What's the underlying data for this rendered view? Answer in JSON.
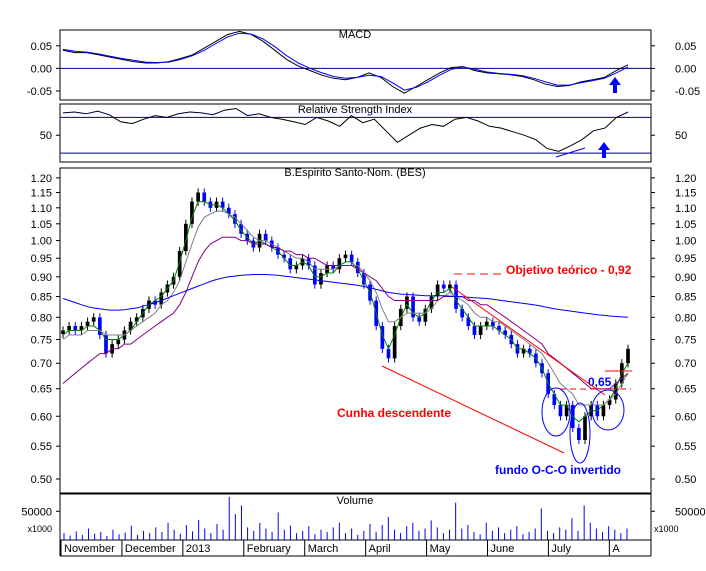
{
  "colors": {
    "background": "#ffffff",
    "frame": "#000000",
    "up_candle": "#000000",
    "down_candle": "#0000ff",
    "sma_short": "#008000",
    "sma_mid": "#800080",
    "sma_long": "#0000ff",
    "annotation_red": "#ff0000",
    "annotation_blue": "#0000ff",
    "marker_arrow": "#0000ff"
  },
  "chart_data": [
    {
      "type": "line",
      "title": "MACD",
      "y_ticks": [
        "0.05",
        "0.00",
        "-0.05"
      ],
      "ylim": [
        -0.07,
        0.085
      ],
      "grid": false,
      "reference_line": 0,
      "marker": "up-arrow",
      "series": [
        {
          "values": [
            0.04,
            0.035,
            0.035,
            0.03,
            0.025,
            0.02,
            0.015,
            0.012,
            0.012,
            0.015,
            0.022,
            0.03,
            0.045,
            0.06,
            0.075,
            0.082,
            0.075,
            0.06,
            0.04,
            0.02,
            0.005,
            -0.005,
            -0.015,
            -0.022,
            -0.025,
            -0.02,
            -0.01,
            -0.02,
            -0.04,
            -0.055,
            -0.04,
            -0.025,
            -0.01,
            0.002,
            0.004,
            -0.005,
            -0.01,
            -0.012,
            -0.014,
            -0.018,
            -0.025,
            -0.035,
            -0.04,
            -0.038,
            -0.03,
            -0.025,
            -0.02,
            -0.005,
            0.008
          ]
        },
        {
          "values": [
            0.042,
            0.038,
            0.036,
            0.032,
            0.027,
            0.022,
            0.018,
            0.014,
            0.013,
            0.014,
            0.02,
            0.028,
            0.04,
            0.055,
            0.07,
            0.078,
            0.076,
            0.065,
            0.048,
            0.028,
            0.012,
            0.0,
            -0.01,
            -0.018,
            -0.022,
            -0.02,
            -0.015,
            -0.018,
            -0.032,
            -0.048,
            -0.042,
            -0.03,
            -0.015,
            -0.002,
            0.003,
            -0.002,
            -0.008,
            -0.011,
            -0.013,
            -0.016,
            -0.022,
            -0.03,
            -0.037,
            -0.037,
            -0.032,
            -0.027,
            -0.022,
            -0.01,
            0.003
          ]
        }
      ]
    },
    {
      "type": "line",
      "title": "Relative Strength Index",
      "y_ticks": [
        "50"
      ],
      "ylim": [
        20,
        85
      ],
      "grid": false,
      "reference_levels": [
        70,
        30
      ],
      "marker": "up-arrow",
      "series": [
        {
          "values": [
            75,
            76,
            74,
            77,
            73,
            65,
            63,
            68,
            72,
            70,
            74,
            76,
            75,
            73,
            78,
            80,
            72,
            74,
            70,
            68,
            65,
            62,
            70,
            66,
            60,
            72,
            64,
            68,
            55,
            42,
            50,
            58,
            62,
            60,
            68,
            70,
            66,
            60,
            58,
            54,
            50,
            45,
            35,
            32,
            38,
            45,
            55,
            58,
            70,
            76
          ]
        }
      ]
    },
    {
      "type": "candlestick",
      "title": "B.Espirito Santo-Nom. (BES)",
      "y_ticks": [
        "1.20",
        "1.15",
        "1.10",
        "1.05",
        "1.00",
        "0.95",
        "0.90",
        "0.85",
        "0.80",
        "0.75",
        "0.70",
        "0.65",
        "0.60",
        "0.55",
        "0.50"
      ],
      "ylim": [
        0.48,
        1.235
      ],
      "y_scale": "log",
      "grid": false,
      "x_labels": [
        "November",
        "December",
        "2013",
        "February",
        "March",
        "April",
        "May",
        "June",
        "July",
        "A"
      ],
      "closes": [
        0.77,
        0.78,
        0.77,
        0.78,
        0.79,
        0.8,
        0.76,
        0.72,
        0.74,
        0.75,
        0.77,
        0.79,
        0.8,
        0.82,
        0.84,
        0.83,
        0.86,
        0.88,
        0.9,
        0.97,
        1.05,
        1.12,
        1.15,
        1.12,
        1.1,
        1.12,
        1.1,
        1.08,
        1.05,
        1.02,
        1.0,
        0.98,
        1.02,
        1.0,
        0.98,
        0.96,
        0.95,
        0.92,
        0.93,
        0.95,
        0.93,
        0.88,
        0.91,
        0.93,
        0.92,
        0.95,
        0.96,
        0.94,
        0.91,
        0.88,
        0.84,
        0.78,
        0.73,
        0.71,
        0.78,
        0.82,
        0.85,
        0.8,
        0.79,
        0.82,
        0.85,
        0.88,
        0.87,
        0.88,
        0.82,
        0.8,
        0.78,
        0.76,
        0.78,
        0.79,
        0.78,
        0.77,
        0.76,
        0.74,
        0.72,
        0.73,
        0.72,
        0.7,
        0.68,
        0.64,
        0.62,
        0.6,
        0.62,
        0.58,
        0.56,
        0.6,
        0.62,
        0.6,
        0.62,
        0.63,
        0.66,
        0.7,
        0.73
      ],
      "series": [
        {
          "values": [
            0.76,
            0.77,
            0.77,
            0.77,
            0.78,
            0.78,
            0.77,
            0.75,
            0.75,
            0.75,
            0.76,
            0.77,
            0.79,
            0.81,
            0.83,
            0.84,
            0.85,
            0.87,
            0.89,
            0.94,
            1.0,
            1.07,
            1.12,
            1.12,
            1.11,
            1.11,
            1.1,
            1.08,
            1.06,
            1.03,
            1.01,
            0.99,
            1.0,
            0.99,
            0.98,
            0.97,
            0.95,
            0.93,
            0.93,
            0.94,
            0.93,
            0.9,
            0.9,
            0.91,
            0.91,
            0.93,
            0.94,
            0.94,
            0.92,
            0.89,
            0.86,
            0.81,
            0.76,
            0.73,
            0.76,
            0.8,
            0.83,
            0.81,
            0.8,
            0.81,
            0.84,
            0.86,
            0.86,
            0.87,
            0.84,
            0.82,
            0.8,
            0.78,
            0.78,
            0.78,
            0.78,
            0.77,
            0.76,
            0.75,
            0.73,
            0.73,
            0.72,
            0.71,
            0.69,
            0.66,
            0.64,
            0.62,
            0.62,
            0.6,
            0.59,
            0.6,
            0.61,
            0.61,
            0.62,
            0.63,
            0.65,
            0.68,
            0.7
          ]
        },
        {
          "values": [
            0.75,
            0.76,
            0.76,
            0.76,
            0.77,
            0.77,
            0.77,
            0.76,
            0.76,
            0.76,
            0.76,
            0.77,
            0.78,
            0.79,
            0.8,
            0.81,
            0.83,
            0.84,
            0.86,
            0.89,
            0.94,
            0.99,
            1.04,
            1.07,
            1.08,
            1.09,
            1.09,
            1.08,
            1.07,
            1.05,
            1.03,
            1.01,
            1.0,
            1.0,
            0.99,
            0.98,
            0.97,
            0.96,
            0.95,
            0.95,
            0.94,
            0.92,
            0.92,
            0.92,
            0.92,
            0.93,
            0.93,
            0.93,
            0.93,
            0.91,
            0.89,
            0.86,
            0.82,
            0.79,
            0.79,
            0.8,
            0.81,
            0.81,
            0.81,
            0.81,
            0.82,
            0.84,
            0.85,
            0.86,
            0.85,
            0.84,
            0.83,
            0.81,
            0.8,
            0.8,
            0.79,
            0.79,
            0.78,
            0.77,
            0.76,
            0.75,
            0.74,
            0.73,
            0.72,
            0.7,
            0.68,
            0.66,
            0.65,
            0.64,
            0.62,
            0.62,
            0.62,
            0.62,
            0.62,
            0.63,
            0.64,
            0.66,
            0.68
          ]
        },
        {
          "values": [
            0.66,
            0.67,
            0.68,
            0.69,
            0.7,
            0.71,
            0.72,
            0.72,
            0.73,
            0.73,
            0.74,
            0.74,
            0.75,
            0.76,
            0.77,
            0.78,
            0.79,
            0.8,
            0.81,
            0.83,
            0.86,
            0.9,
            0.94,
            0.97,
            0.99,
            1.0,
            1.01,
            1.01,
            1.01,
            1.0,
            1.0,
            0.99,
            0.99,
            0.99,
            0.98,
            0.98,
            0.97,
            0.97,
            0.96,
            0.96,
            0.95,
            0.95,
            0.94,
            0.93,
            0.93,
            0.93,
            0.93,
            0.93,
            0.92,
            0.91,
            0.9,
            0.89,
            0.87,
            0.85,
            0.84,
            0.84,
            0.84,
            0.84,
            0.84,
            0.84,
            0.84,
            0.84,
            0.85,
            0.85,
            0.85,
            0.85,
            0.84,
            0.84,
            0.83,
            0.83,
            0.82,
            0.81,
            0.8,
            0.79,
            0.78,
            0.77,
            0.76,
            0.75,
            0.74,
            0.72,
            0.71,
            0.7,
            0.69,
            0.68,
            0.67,
            0.66,
            0.65,
            0.65,
            0.65,
            0.65,
            0.66,
            0.67,
            0.68
          ]
        },
        {
          "values": [
            0.845,
            0.84,
            0.835,
            0.83,
            0.825,
            0.822,
            0.82,
            0.818,
            0.817,
            0.817,
            0.818,
            0.82,
            0.822,
            0.826,
            0.83,
            0.835,
            0.84,
            0.846,
            0.852,
            0.858,
            0.864,
            0.87,
            0.876,
            0.882,
            0.888,
            0.893,
            0.897,
            0.9,
            0.902,
            0.904,
            0.905,
            0.906,
            0.906,
            0.906,
            0.905,
            0.904,
            0.902,
            0.9,
            0.898,
            0.896,
            0.894,
            0.892,
            0.89,
            0.888,
            0.886,
            0.884,
            0.882,
            0.88,
            0.878,
            0.875,
            0.872,
            0.868,
            0.864,
            0.86,
            0.858,
            0.856,
            0.855,
            0.854,
            0.853,
            0.852,
            0.852,
            0.852,
            0.852,
            0.851,
            0.85,
            0.849,
            0.848,
            0.847,
            0.846,
            0.845,
            0.843,
            0.841,
            0.839,
            0.837,
            0.835,
            0.833,
            0.831,
            0.829,
            0.826,
            0.823,
            0.82,
            0.818,
            0.816,
            0.814,
            0.812,
            0.81,
            0.808,
            0.806,
            0.805,
            0.803,
            0.802,
            0.801,
            0.8
          ]
        }
      ],
      "annotations": {
        "target": "Objetivo teórico - 0,92",
        "wedge": "Cunha descendente",
        "neckline": "0,65",
        "pattern": "fundo O-C-O invertido"
      }
    },
    {
      "type": "bar",
      "title": "Volume",
      "y_ticks": [
        "50000"
      ],
      "y_multiplier": "x1000",
      "ylim": [
        0,
        80000
      ],
      "grid": false,
      "values": [
        12,
        8,
        15,
        9,
        20,
        11,
        14,
        7,
        18,
        10,
        13,
        25,
        9,
        16,
        12,
        22,
        14,
        30,
        18,
        11,
        26,
        15,
        35,
        20,
        12,
        28,
        18,
        75,
        45,
        60,
        22,
        16,
        30,
        20,
        14,
        48,
        18,
        25,
        12,
        16,
        24,
        10,
        18,
        14,
        22,
        30,
        12,
        20,
        9,
        16,
        28,
        14,
        26,
        40,
        18,
        12,
        24,
        30,
        16,
        20,
        34,
        22,
        12,
        18,
        65,
        20,
        26,
        14,
        10,
        30,
        16,
        22,
        12,
        18,
        24,
        10,
        14,
        20,
        55,
        16,
        12,
        22,
        18,
        38,
        16,
        60,
        30,
        20,
        14,
        24,
        18,
        12,
        20
      ]
    }
  ]
}
